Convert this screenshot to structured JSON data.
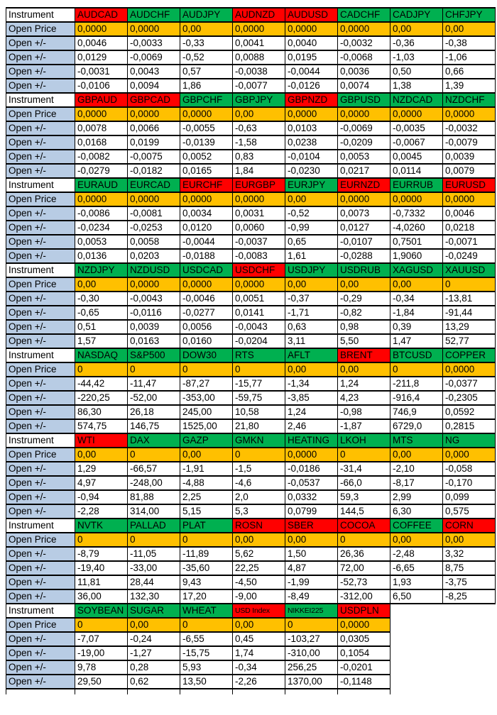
{
  "labels": {
    "instrument": "Instrument",
    "open_price": "Open Price",
    "open_change": "Open +/-"
  },
  "colors": {
    "instrument_up_green": "#00B050",
    "instrument_down_red": "#FF0000",
    "open_price_amber": "#FFC000",
    "row_label_blue": "#B8CCE4",
    "grid_border": "#000000"
  },
  "blocks": [
    {
      "instruments": [
        {
          "name": "AUDCAD",
          "color": "red"
        },
        {
          "name": "AUDCHF",
          "color": "green"
        },
        {
          "name": "AUDJPY",
          "color": "green"
        },
        {
          "name": "AUDNZD",
          "color": "red"
        },
        {
          "name": "AUDUSD",
          "color": "red"
        },
        {
          "name": "CADCHF",
          "color": "green"
        },
        {
          "name": "CADJPY",
          "color": "green"
        },
        {
          "name": "CHFJPY",
          "color": "green"
        }
      ],
      "open_price": [
        "0,0000",
        "0,0000",
        "0,00",
        "0,0000",
        "0,0000",
        "0,0000",
        "0,00",
        "0,00"
      ],
      "changes": [
        [
          "0,0046",
          "-0,0033",
          "-0,33",
          "0,0041",
          "0,0040",
          "-0,0032",
          "-0,36",
          "-0,38"
        ],
        [
          "0,0129",
          "-0,0069",
          "-0,52",
          "0,0088",
          "0,0195",
          "-0,0068",
          "-1,03",
          "-1,06"
        ],
        [
          "-0,0031",
          "0,0043",
          "0,57",
          "-0,0038",
          "-0,0044",
          "0,0036",
          "0,50",
          "0,66"
        ],
        [
          "-0,0106",
          "0,0094",
          "1,86",
          "-0,0077",
          "-0,0126",
          "0,0074",
          "1,38",
          "1,39"
        ]
      ]
    },
    {
      "instruments": [
        {
          "name": "GBPAUD",
          "color": "red"
        },
        {
          "name": "GBPCAD",
          "color": "red"
        },
        {
          "name": "GBPCHF",
          "color": "green"
        },
        {
          "name": "GBPJPY",
          "color": "green"
        },
        {
          "name": "GBPNZD",
          "color": "red"
        },
        {
          "name": "GBPUSD",
          "color": "green"
        },
        {
          "name": "NZDCAD",
          "color": "green"
        },
        {
          "name": "NZDCHF",
          "color": "green"
        }
      ],
      "open_price": [
        "0,0000",
        "0,0000",
        "0,0000",
        "0,00",
        "0,0000",
        "0,0000",
        "0,0000",
        "0,0000"
      ],
      "changes": [
        [
          "0,0078",
          "0,0066",
          "-0,0055",
          "-0,63",
          "0,0103",
          "-0,0069",
          "-0,0035",
          "-0,0032"
        ],
        [
          "0,0168",
          "0,0199",
          "-0,0139",
          "-1,58",
          "0,0238",
          "-0,0209",
          "-0,0067",
          "-0,0079"
        ],
        [
          "-0,0082",
          "-0,0075",
          "0,0052",
          "0,83",
          "-0,0104",
          "0,0053",
          "0,0045",
          "0,0039"
        ],
        [
          "-0,0279",
          "-0,0182",
          "0,0165",
          "1,84",
          "-0,0230",
          "0,0217",
          "0,0114",
          "0,0079"
        ]
      ]
    },
    {
      "instruments": [
        {
          "name": "EURAUD",
          "color": "green"
        },
        {
          "name": "EURCAD",
          "color": "green"
        },
        {
          "name": "EURCHF",
          "color": "red"
        },
        {
          "name": "EURGBP",
          "color": "red"
        },
        {
          "name": "EURJPY",
          "color": "green"
        },
        {
          "name": "EURNZD",
          "color": "red"
        },
        {
          "name": "EURRUB",
          "color": "green"
        },
        {
          "name": "EURUSD",
          "color": "red"
        }
      ],
      "open_price": [
        "0,0000",
        "0,0000",
        "0,0000",
        "0,0000",
        "0,00",
        "0,0000",
        "0,0000",
        "0,0000"
      ],
      "changes": [
        [
          "-0,0086",
          "-0,0081",
          "0,0034",
          "0,0031",
          "-0,52",
          "0,0073",
          "-0,7332",
          "0,0046"
        ],
        [
          "-0,0234",
          "-0,0253",
          "0,0120",
          "0,0060",
          "-0,99",
          "0,0127",
          "-4,0260",
          "0,0218"
        ],
        [
          "0,0053",
          "0,0058",
          "-0,0044",
          "-0,0037",
          "0,65",
          "-0,0107",
          "0,7501",
          "-0,0071"
        ],
        [
          "0,0136",
          "0,0203",
          "-0,0188",
          "-0,0083",
          "1,61",
          "-0,0288",
          "1,9060",
          "-0,0249"
        ]
      ]
    },
    {
      "instruments": [
        {
          "name": "NZDJPY",
          "color": "green"
        },
        {
          "name": "NZDUSD",
          "color": "green"
        },
        {
          "name": "USDCAD",
          "color": "green"
        },
        {
          "name": "USDCHF",
          "color": "red"
        },
        {
          "name": "USDJPY",
          "color": "green"
        },
        {
          "name": "USDRUB",
          "color": "green"
        },
        {
          "name": "XAGUSD",
          "color": "green"
        },
        {
          "name": "XAUUSD",
          "color": "green"
        }
      ],
      "open_price": [
        "0,00",
        "0,0000",
        "0,0000",
        "0,0000",
        "0,00",
        "0,00",
        "0,00",
        "0"
      ],
      "changes": [
        [
          "-0,30",
          "-0,0043",
          "-0,0046",
          "0,0051",
          "-0,37",
          "-0,29",
          "-0,34",
          "-13,81"
        ],
        [
          "-0,65",
          "-0,0116",
          "-0,0277",
          "0,0141",
          "-1,71",
          "-0,82",
          "-1,84",
          "-91,44"
        ],
        [
          "0,51",
          "0,0039",
          "0,0056",
          "-0,0043",
          "0,63",
          "0,98",
          "0,39",
          "13,29"
        ],
        [
          "1,57",
          "0,0163",
          "0,0160",
          "-0,0204",
          "3,11",
          "5,50",
          "1,47",
          "52,77"
        ]
      ]
    },
    {
      "instruments": [
        {
          "name": "NASDAQ",
          "color": "green"
        },
        {
          "name": "S&P500",
          "color": "green"
        },
        {
          "name": "DOW30",
          "color": "green"
        },
        {
          "name": "RTS",
          "color": "green"
        },
        {
          "name": "AFLT",
          "color": "green"
        },
        {
          "name": "BRENT",
          "color": "red"
        },
        {
          "name": "BTCUSD",
          "color": "green"
        },
        {
          "name": "COPPER",
          "color": "green"
        }
      ],
      "open_price": [
        "0",
        "0",
        "0",
        "0",
        "0,00",
        "0,00",
        "0",
        "0,0000"
      ],
      "changes": [
        [
          "-44,42",
          "-11,47",
          "-87,27",
          "-15,77",
          "-1,34",
          "1,24",
          "-211,8",
          "-0,0377"
        ],
        [
          "-220,25",
          "-52,00",
          "-353,00",
          "-59,75",
          "-3,85",
          "4,23",
          "-916,4",
          "-0,2305"
        ],
        [
          "86,30",
          "26,18",
          "245,00",
          "10,58",
          "1,24",
          "-0,98",
          "746,9",
          "0,0592"
        ],
        [
          "574,75",
          "146,75",
          "1525,00",
          "21,80",
          "2,46",
          "-1,87",
          "6729,0",
          "0,2815"
        ]
      ]
    },
    {
      "instruments": [
        {
          "name": "WTI",
          "color": "red"
        },
        {
          "name": "DAX",
          "color": "green"
        },
        {
          "name": "GAZP",
          "color": "green"
        },
        {
          "name": "GMKN",
          "color": "green"
        },
        {
          "name": "HEATING",
          "color": "green"
        },
        {
          "name": "LKOH",
          "color": "green"
        },
        {
          "name": "MTS",
          "color": "green"
        },
        {
          "name": "NG",
          "color": "green"
        }
      ],
      "open_price": [
        "0,00",
        "0",
        "0,00",
        "0",
        "0,0000",
        "0",
        "0,00",
        "0,000"
      ],
      "changes": [
        [
          "1,29",
          "-66,57",
          "-1,91",
          "-1,5",
          "-0,0186",
          "-31,4",
          "-2,10",
          "-0,058"
        ],
        [
          "4,97",
          "-248,00",
          "-4,88",
          "-4,6",
          "-0,0537",
          "-66,0",
          "-8,17",
          "-0,170"
        ],
        [
          "-0,94",
          "81,88",
          "2,25",
          "2,0",
          "0,0332",
          "59,3",
          "2,99",
          "0,099"
        ],
        [
          "-2,28",
          "314,00",
          "5,15",
          "5,3",
          "0,0799",
          "144,5",
          "6,30",
          "0,575"
        ]
      ]
    },
    {
      "instruments": [
        {
          "name": "NVTK",
          "color": "green"
        },
        {
          "name": "PALLAD",
          "color": "green"
        },
        {
          "name": "PLAT",
          "color": "green"
        },
        {
          "name": "ROSN",
          "color": "red"
        },
        {
          "name": "SBER",
          "color": "red"
        },
        {
          "name": "COCOA",
          "color": "red"
        },
        {
          "name": "COFFEE",
          "color": "green"
        },
        {
          "name": "CORN",
          "color": "red"
        }
      ],
      "open_price": [
        "0",
        "0",
        "0",
        "0,00",
        "0,00",
        "0",
        "0,00",
        "0,00"
      ],
      "changes": [
        [
          "-8,79",
          "-11,05",
          "-11,89",
          "5,62",
          "1,50",
          "26,36",
          "-2,48",
          "3,32"
        ],
        [
          "-19,40",
          "-33,00",
          "-35,60",
          "22,25",
          "4,87",
          "72,00",
          "-6,65",
          "8,75"
        ],
        [
          "11,81",
          "28,44",
          "9,43",
          "-4,50",
          "-1,99",
          "-52,73",
          "1,93",
          "-3,75"
        ],
        [
          "36,00",
          "132,30",
          "17,20",
          "-9,00",
          "-8,49",
          "-312,00",
          "6,50",
          "-8,25"
        ]
      ]
    },
    {
      "instruments": [
        {
          "name": "SOYBEAN",
          "color": "green"
        },
        {
          "name": "SUGAR",
          "color": "green"
        },
        {
          "name": "WHEAT",
          "color": "green"
        },
        {
          "name": "USD Index",
          "color": "red",
          "small": true
        },
        {
          "name": "NIKKEI225",
          "color": "green",
          "small": true
        },
        {
          "name": "USDPLN",
          "color": "red"
        }
      ],
      "open_price": [
        "0",
        "0,00",
        "0",
        "0,00",
        "0",
        "0,0000"
      ],
      "changes": [
        [
          "-7,07",
          "-0,24",
          "-6,55",
          "0,45",
          "-103,27",
          "0,0305"
        ],
        [
          "-19,00",
          "-1,27",
          "-15,75",
          "1,74",
          "-310,00",
          "0,1054"
        ],
        [
          "9,78",
          "0,28",
          "5,93",
          "-0,34",
          "256,25",
          "-0,0201"
        ],
        [
          "29,50",
          "0,62",
          "13,50",
          "-2,26",
          "1370,00",
          "-0,1148"
        ]
      ]
    }
  ]
}
